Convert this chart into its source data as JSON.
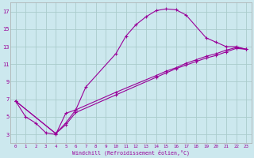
{
  "xlabel": "Windchill (Refroidissement éolien,°C)",
  "bg_color": "#cce8ee",
  "grid_color": "#aacccc",
  "line_color": "#990099",
  "xlim": [
    -0.5,
    23.5
  ],
  "ylim": [
    2,
    18
  ],
  "xticks": [
    0,
    1,
    2,
    3,
    4,
    5,
    6,
    7,
    8,
    9,
    10,
    11,
    12,
    13,
    14,
    15,
    16,
    17,
    18,
    19,
    20,
    21,
    22,
    23
  ],
  "yticks": [
    3,
    5,
    7,
    9,
    11,
    13,
    15,
    17
  ],
  "curve1_x": [
    0,
    1,
    2,
    3,
    4,
    5,
    6,
    7,
    10,
    11,
    12,
    13,
    14,
    15,
    16,
    17,
    19,
    20,
    21,
    22,
    23
  ],
  "curve1_y": [
    6.8,
    5.0,
    4.3,
    3.2,
    3.0,
    5.4,
    5.8,
    8.4,
    12.2,
    14.2,
    15.5,
    16.4,
    17.1,
    17.3,
    17.2,
    16.6,
    14.0,
    13.5,
    13.0,
    13.0,
    12.7
  ],
  "curve2_x": [
    0,
    4,
    5,
    6,
    10,
    14,
    15,
    16,
    17,
    18,
    19,
    20,
    21,
    22,
    23
  ],
  "curve2_y": [
    6.8,
    3.1,
    4.3,
    5.8,
    7.8,
    9.7,
    10.2,
    10.6,
    11.1,
    11.5,
    11.9,
    12.2,
    12.6,
    12.9,
    12.7
  ],
  "curve3_x": [
    0,
    4,
    5,
    6,
    10,
    14,
    15,
    16,
    17,
    18,
    19,
    20,
    21,
    22,
    23
  ],
  "curve3_y": [
    6.8,
    3.1,
    4.1,
    5.5,
    7.5,
    9.5,
    10.0,
    10.5,
    10.9,
    11.3,
    11.7,
    12.0,
    12.4,
    12.8,
    12.7
  ]
}
